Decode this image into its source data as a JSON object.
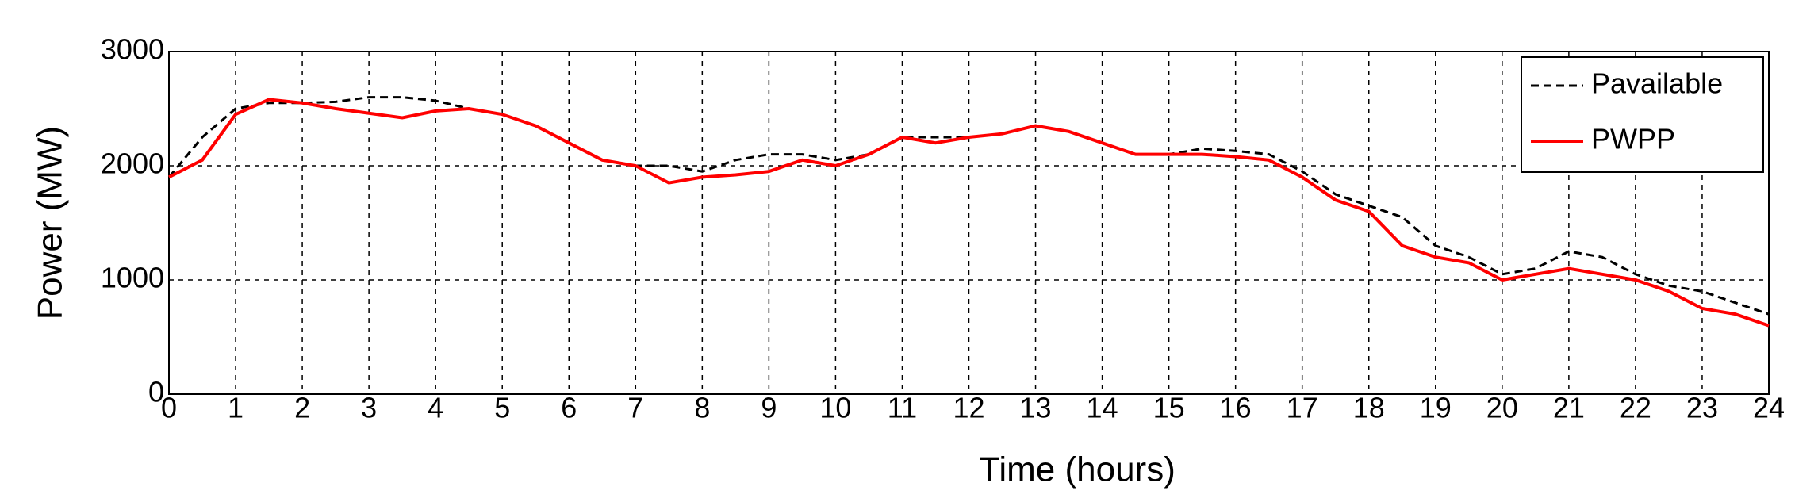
{
  "chart_data": {
    "type": "line",
    "xlabel": "Time (hours)",
    "ylabel": "Power (MW)",
    "x": [
      0,
      0.5,
      1,
      1.5,
      2,
      2.5,
      3,
      3.5,
      4,
      4.5,
      5,
      5.5,
      6,
      6.5,
      7,
      7.5,
      8,
      8.5,
      9,
      9.5,
      10,
      10.5,
      11,
      11.5,
      12,
      12.5,
      13,
      13.5,
      14,
      14.5,
      15,
      15.5,
      16,
      16.5,
      17,
      17.5,
      18,
      18.5,
      19,
      19.5,
      20,
      20.5,
      21,
      21.5,
      22,
      22.5,
      23,
      23.5,
      24
    ],
    "series": [
      {
        "name": "Pavailable",
        "color": "#000000",
        "dashed": true,
        "values": [
          1900,
          2250,
          2500,
          2550,
          2550,
          2560,
          2600,
          2600,
          2570,
          2500,
          2450,
          2350,
          2200,
          2050,
          2000,
          2000,
          1950,
          2050,
          2100,
          2100,
          2050,
          2100,
          2250,
          2250,
          2250,
          2280,
          2350,
          2300,
          2200,
          2100,
          2100,
          2150,
          2130,
          2100,
          1950,
          1750,
          1650,
          1550,
          1300,
          1200,
          1050,
          1100,
          1250,
          1200,
          1050,
          950,
          900,
          800,
          700
        ]
      },
      {
        "name": "PWPP",
        "color": "#ff0000",
        "dashed": false,
        "values": [
          1900,
          2050,
          2450,
          2580,
          2550,
          2500,
          2460,
          2420,
          2480,
          2500,
          2450,
          2350,
          2200,
          2050,
          2000,
          1850,
          1900,
          1920,
          1950,
          2050,
          2000,
          2100,
          2250,
          2200,
          2250,
          2280,
          2350,
          2300,
          2200,
          2100,
          2100,
          2100,
          2080,
          2050,
          1900,
          1700,
          1600,
          1300,
          1200,
          1150,
          1000,
          1050,
          1100,
          1050,
          1000,
          900,
          750,
          700,
          600
        ]
      }
    ],
    "xlim": [
      0,
      24
    ],
    "xticks": [
      0,
      1,
      2,
      3,
      4,
      5,
      6,
      7,
      8,
      9,
      10,
      11,
      12,
      13,
      14,
      15,
      16,
      17,
      18,
      19,
      20,
      21,
      22,
      23,
      24
    ],
    "ylim": [
      0,
      3000
    ],
    "yticks": [
      0,
      1000,
      2000,
      3000
    ],
    "grid": true,
    "legend": "upper right"
  }
}
